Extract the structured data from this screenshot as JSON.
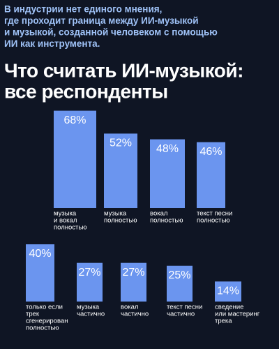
{
  "header": {
    "intro": [
      "В индустрии нет единого мнения,",
      "где проходит граница между ИИ-музыкой",
      "и музыкой, созданной человеком с помощью",
      "ИИ как инструмента."
    ],
    "title": [
      "Что считать ИИ-музыкой:",
      "все респонденты"
    ]
  },
  "chart_data": [
    {
      "type": "bar",
      "color": "#6b95ef",
      "categories": [
        [
          "музыка",
          "и вокал",
          "полностью"
        ],
        [
          "музыка",
          "полностью"
        ],
        [
          "вокал",
          "полностью"
        ],
        [
          "текст песни",
          "полностью"
        ]
      ],
      "values": [
        68,
        52,
        48,
        46
      ],
      "value_labels": [
        "68%",
        "52%",
        "48%",
        "46%"
      ]
    },
    {
      "type": "bar",
      "color": "#6b95ef",
      "categories": [
        [
          "только если",
          "трек",
          "сгенерирован",
          "полностью"
        ],
        [
          "музыка",
          "частично"
        ],
        [
          "вокал",
          "частично"
        ],
        [
          "текст песни",
          "частично"
        ],
        [
          "сведение",
          "или мастеринг",
          "трека"
        ]
      ],
      "values": [
        40,
        27,
        27,
        25,
        14
      ],
      "value_labels": [
        "40%",
        "27%",
        "27%",
        "25%",
        "14%"
      ]
    }
  ]
}
